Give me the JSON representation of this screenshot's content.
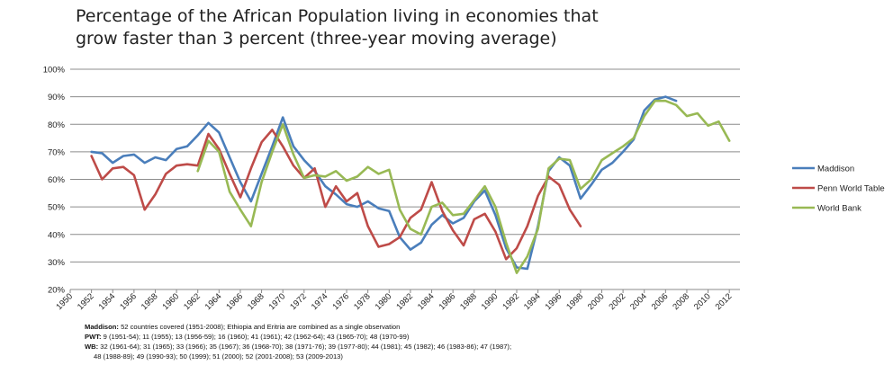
{
  "title_lines": [
    "Percentage of the African Population living in economies that",
    "grow faster than 3 percent (three-year moving average)"
  ],
  "notes": [
    {
      "label": "Maddison:",
      "text": " 52 countries covered (1951-2008); Ethiopia and Eritria are combined as a single observation"
    },
    {
      "label": "PWT:",
      "text": " 9 (1951-54); 11 (1955); 13 (1956-59); 16 (1960); 41 (1961); 42 (1962-64); 43 (1965-70); 48 (1970-99)"
    },
    {
      "label": "WB:",
      "text": " 32 (1961-64); 31 (1965); 33 (1966); 35 (1967); 36 (1968-70); 38 (1971-76); 39 (1977-80); 44 (1981); 45 (1982); 46 (1983-86); 47 (1987);"
    },
    {
      "label": "",
      "text": "48 (1988-89); 49 (1990-93); 50 (1999); 51 (2000); 52 (2001-2008); 53 (2009-2013)"
    }
  ],
  "chart_data": {
    "type": "line",
    "title": "Percentage of the African Population living in economies that grow faster than 3 percent (three-year moving average)",
    "xlim": [
      1950,
      2013
    ],
    "ylim": [
      20,
      100
    ],
    "x_ticks": [
      1950,
      1952,
      1954,
      1956,
      1958,
      1960,
      1962,
      1964,
      1966,
      1968,
      1970,
      1972,
      1974,
      1976,
      1978,
      1980,
      1982,
      1984,
      1986,
      1988,
      1990,
      1992,
      1994,
      1996,
      1998,
      2000,
      2002,
      2004,
      2006,
      2008,
      2010,
      2012
    ],
    "y_ticks": [
      20,
      30,
      40,
      50,
      60,
      70,
      80,
      90,
      100
    ],
    "y_tick_labels": [
      "20%",
      "30%",
      "40%",
      "50%",
      "60%",
      "70%",
      "80%",
      "90%",
      "100%"
    ],
    "grid": "horizontal",
    "legend_position": "right",
    "series": [
      {
        "name": "Maddison",
        "color": "#4a7ebb",
        "points": [
          [
            1952,
            70
          ],
          [
            1953,
            69.5
          ],
          [
            1954,
            66
          ],
          [
            1955,
            68.5
          ],
          [
            1956,
            69
          ],
          [
            1957,
            66
          ],
          [
            1958,
            68
          ],
          [
            1959,
            67
          ],
          [
            1960,
            71
          ],
          [
            1961,
            72
          ],
          [
            1962,
            76
          ],
          [
            1963,
            80.5
          ],
          [
            1964,
            77
          ],
          [
            1965,
            68
          ],
          [
            1966,
            59
          ],
          [
            1967,
            52
          ],
          [
            1968,
            62
          ],
          [
            1969,
            72
          ],
          [
            1970,
            82.5
          ],
          [
            1971,
            72
          ],
          [
            1972,
            67
          ],
          [
            1973,
            63
          ],
          [
            1974,
            57.5
          ],
          [
            1975,
            54.5
          ],
          [
            1976,
            51
          ],
          [
            1977,
            50
          ],
          [
            1978,
            52
          ],
          [
            1979,
            49.5
          ],
          [
            1980,
            48.5
          ],
          [
            1981,
            39
          ],
          [
            1982,
            34.5
          ],
          [
            1983,
            37
          ],
          [
            1984,
            43.5
          ],
          [
            1985,
            47
          ],
          [
            1986,
            44
          ],
          [
            1987,
            46
          ],
          [
            1988,
            52
          ],
          [
            1989,
            56
          ],
          [
            1990,
            47
          ],
          [
            1991,
            35
          ],
          [
            1992,
            28
          ],
          [
            1993,
            27.5
          ],
          [
            1994,
            43
          ],
          [
            1995,
            63
          ],
          [
            1996,
            68
          ],
          [
            1997,
            65
          ],
          [
            1998,
            53
          ],
          [
            1999,
            58
          ],
          [
            2000,
            63.5
          ],
          [
            2001,
            66
          ],
          [
            2002,
            70
          ],
          [
            2003,
            74.5
          ],
          [
            2004,
            85
          ],
          [
            2005,
            89
          ],
          [
            2006,
            90
          ],
          [
            2007,
            88.5
          ]
        ]
      },
      {
        "name": "Penn World Table",
        "color": "#be4b48",
        "points": [
          [
            1952,
            68.5
          ],
          [
            1953,
            60
          ],
          [
            1954,
            64
          ],
          [
            1955,
            64.5
          ],
          [
            1956,
            61.5
          ],
          [
            1957,
            49
          ],
          [
            1958,
            54.5
          ],
          [
            1959,
            62
          ],
          [
            1960,
            65
          ],
          [
            1961,
            65.5
          ],
          [
            1962,
            65
          ],
          [
            1963,
            76.5
          ],
          [
            1964,
            71
          ],
          [
            1965,
            62
          ],
          [
            1966,
            53.5
          ],
          [
            1967,
            64
          ],
          [
            1968,
            73.5
          ],
          [
            1969,
            78
          ],
          [
            1970,
            72
          ],
          [
            1971,
            65
          ],
          [
            1972,
            60.5
          ],
          [
            1973,
            64
          ],
          [
            1974,
            50
          ],
          [
            1975,
            57.5
          ],
          [
            1976,
            52
          ],
          [
            1977,
            55
          ],
          [
            1978,
            43
          ],
          [
            1979,
            35.5
          ],
          [
            1980,
            36.5
          ],
          [
            1981,
            39
          ],
          [
            1982,
            46
          ],
          [
            1983,
            49
          ],
          [
            1984,
            59
          ],
          [
            1985,
            48.5
          ],
          [
            1986,
            41.5
          ],
          [
            1987,
            36
          ],
          [
            1988,
            45.5
          ],
          [
            1989,
            47.5
          ],
          [
            1990,
            41
          ],
          [
            1991,
            31
          ],
          [
            1992,
            35
          ],
          [
            1993,
            43
          ],
          [
            1994,
            54
          ],
          [
            1995,
            61
          ],
          [
            1996,
            58
          ],
          [
            1997,
            49
          ],
          [
            1998,
            43
          ]
        ]
      },
      {
        "name": "World Bank",
        "color": "#98b954",
        "points": [
          [
            1962,
            63
          ],
          [
            1963,
            74
          ],
          [
            1964,
            70
          ],
          [
            1965,
            55.5
          ],
          [
            1966,
            49
          ],
          [
            1967,
            43
          ],
          [
            1968,
            59
          ],
          [
            1969,
            70
          ],
          [
            1970,
            80
          ],
          [
            1971,
            69
          ],
          [
            1972,
            60.5
          ],
          [
            1973,
            61.5
          ],
          [
            1974,
            61
          ],
          [
            1975,
            63
          ],
          [
            1976,
            59.5
          ],
          [
            1977,
            61
          ],
          [
            1978,
            64.5
          ],
          [
            1979,
            62
          ],
          [
            1980,
            63.5
          ],
          [
            1981,
            49
          ],
          [
            1982,
            42
          ],
          [
            1983,
            40
          ],
          [
            1984,
            50
          ],
          [
            1985,
            51.5
          ],
          [
            1986,
            47
          ],
          [
            1987,
            47.5
          ],
          [
            1988,
            52.5
          ],
          [
            1989,
            57.5
          ],
          [
            1990,
            50
          ],
          [
            1991,
            37
          ],
          [
            1992,
            26
          ],
          [
            1993,
            32
          ],
          [
            1994,
            42
          ],
          [
            1995,
            64
          ],
          [
            1996,
            67.5
          ],
          [
            1997,
            67
          ],
          [
            1998,
            56.5
          ],
          [
            1999,
            60
          ],
          [
            2000,
            67
          ],
          [
            2001,
            69.5
          ],
          [
            2002,
            72
          ],
          [
            2003,
            75
          ],
          [
            2004,
            83
          ],
          [
            2005,
            88.5
          ],
          [
            2006,
            88.5
          ],
          [
            2007,
            87
          ],
          [
            2008,
            83
          ],
          [
            2009,
            84
          ],
          [
            2010,
            79.5
          ],
          [
            2011,
            81
          ],
          [
            2012,
            74
          ]
        ]
      }
    ]
  }
}
